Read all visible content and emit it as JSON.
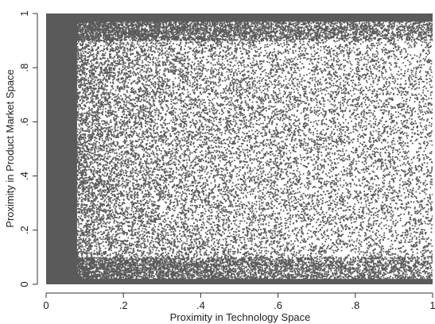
{
  "chart_data": {
    "type": "scatter",
    "xlabel": "Proximity in Technology Space",
    "ylabel": "Proximity in Product Market Space",
    "xlim": [
      0,
      1
    ],
    "ylim": [
      0,
      1
    ],
    "x_ticks": [
      {
        "value": 0,
        "label": "0"
      },
      {
        "value": 0.2,
        "label": ".2"
      },
      {
        "value": 0.4,
        "label": ".4"
      },
      {
        "value": 0.6,
        "label": ".6"
      },
      {
        "value": 0.8,
        "label": ".8"
      },
      {
        "value": 1,
        "label": "1"
      }
    ],
    "y_ticks": [
      {
        "value": 0,
        "label": "0"
      },
      {
        "value": 0.2,
        "label": ".2"
      },
      {
        "value": 0.4,
        "label": ".4"
      },
      {
        "value": 0.6,
        "label": ".6"
      },
      {
        "value": 0.8,
        "label": ".8"
      },
      {
        "value": 1,
        "label": "1"
      }
    ],
    "grid": false,
    "legend": "none",
    "point_color": "#5a5a5a",
    "density_description": "Very dense cloud of points; density highest at low technology proximity and decreasing as technology proximity increases. Strong concentration near product-market proximity of 0 and 1.",
    "series": [
      {
        "points": [
          [
            0.02,
            0.05
          ],
          [
            0.03,
            0.31
          ],
          [
            0.04,
            0.52
          ],
          [
            0.05,
            0.74
          ],
          [
            0.06,
            0.93
          ],
          [
            0.08,
            0.12
          ],
          [
            0.09,
            0.44
          ],
          [
            0.1,
            0.66
          ],
          [
            0.11,
            0.88
          ],
          [
            0.12,
            0.23
          ],
          [
            0.14,
            0.57
          ],
          [
            0.15,
            0.79
          ],
          [
            0.16,
            0.35
          ],
          [
            0.18,
            0.68
          ],
          [
            0.19,
            0.91
          ],
          [
            0.21,
            0.16
          ],
          [
            0.22,
            0.48
          ],
          [
            0.24,
            0.72
          ],
          [
            0.25,
            0.27
          ],
          [
            0.27,
            0.61
          ],
          [
            0.28,
            0.95
          ],
          [
            0.3,
            0.09
          ],
          [
            0.31,
            0.39
          ],
          [
            0.33,
            0.83
          ],
          [
            0.35,
            0.21
          ],
          [
            0.37,
            0.55
          ],
          [
            0.38,
            0.97
          ],
          [
            0.4,
            0.14
          ],
          [
            0.42,
            0.45
          ],
          [
            0.44,
            0.89
          ],
          [
            0.46,
            0.06
          ],
          [
            0.48,
            0.33
          ],
          [
            0.5,
            0.92
          ],
          [
            0.52,
            0.18
          ],
          [
            0.54,
            0.62
          ],
          [
            0.56,
            0.98
          ],
          [
            0.58,
            0.04
          ],
          [
            0.6,
            0.41
          ],
          [
            0.62,
            0.86
          ],
          [
            0.64,
            0.11
          ],
          [
            0.66,
            0.29
          ],
          [
            0.68,
            0.94
          ],
          [
            0.7,
            0.02
          ],
          [
            0.72,
            0.37
          ],
          [
            0.74,
            0.81
          ],
          [
            0.76,
            0.08
          ],
          [
            0.78,
            0.24
          ],
          [
            0.8,
            0.96
          ],
          [
            0.82,
            0.03
          ],
          [
            0.84,
            0.47
          ],
          [
            0.86,
            0.9
          ],
          [
            0.88,
            0.12
          ],
          [
            0.9,
            0.31
          ],
          [
            0.92,
            0.97
          ],
          [
            0.94,
            0.05
          ],
          [
            0.96,
            0.58
          ],
          [
            0.98,
            0.93
          ],
          [
            0.99,
            0.15
          ],
          [
            0.97,
            0.99
          ],
          [
            0.95,
            0.01
          ]
        ]
      }
    ]
  }
}
